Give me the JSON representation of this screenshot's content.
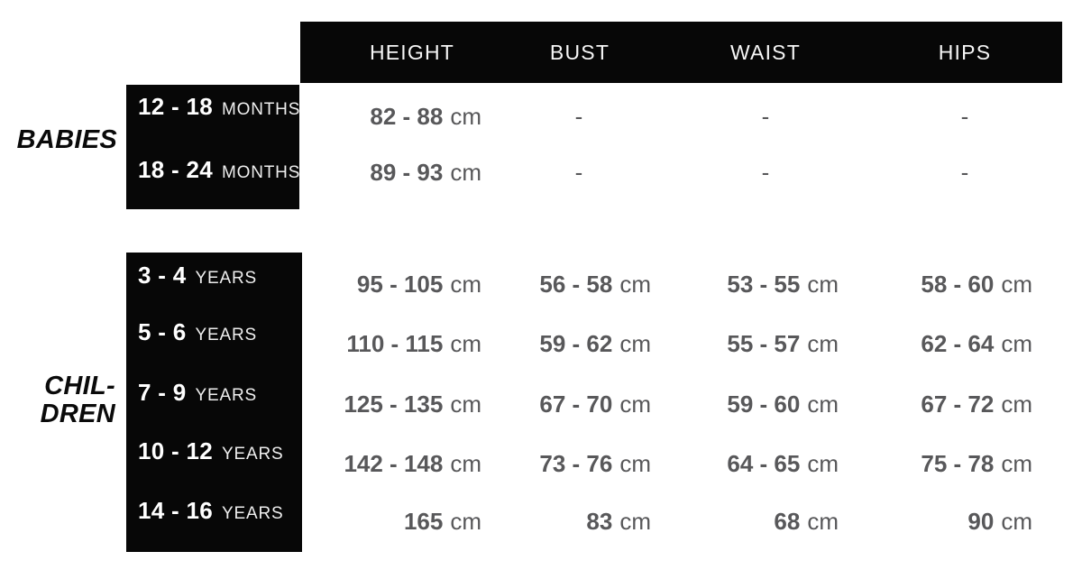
{
  "colors": {
    "bar_background": "#070707",
    "header_text": "#f7f7f7",
    "value_text": "#58585a",
    "side_label_text": "#0a0a0a"
  },
  "table": {
    "columns": [
      {
        "label": "HEIGHT"
      },
      {
        "label": "BUST"
      },
      {
        "label": "WAIST"
      },
      {
        "label": "HIPS"
      }
    ],
    "groups": [
      {
        "title_lines": [
          "BABIES"
        ],
        "rows": [
          {
            "range": "12 - 18",
            "unit": "MONTHS",
            "cells": [
              {
                "range": "82 - 88",
                "unit": "cm"
              },
              {
                "dash": "-"
              },
              {
                "dash": "-"
              },
              {
                "dash": "-"
              }
            ]
          },
          {
            "range": "18 - 24",
            "unit": "MONTHS",
            "cells": [
              {
                "range": "89 - 93",
                "unit": "cm"
              },
              {
                "dash": "-"
              },
              {
                "dash": "-"
              },
              {
                "dash": "-"
              }
            ]
          }
        ]
      },
      {
        "title_lines": [
          "CHIL-",
          "DREN"
        ],
        "rows": [
          {
            "range": "3 - 4",
            "unit": "YEARS",
            "cells": [
              {
                "range": "95 - 105",
                "unit": "cm"
              },
              {
                "range": "56 - 58",
                "unit": "cm"
              },
              {
                "range": "53 - 55",
                "unit": "cm"
              },
              {
                "range": "58 - 60",
                "unit": "cm"
              }
            ]
          },
          {
            "range": "5 - 6",
            "unit": "YEARS",
            "cells": [
              {
                "range": "110 - 115",
                "unit": "cm"
              },
              {
                "range": "59 - 62",
                "unit": "cm"
              },
              {
                "range": "55 - 57",
                "unit": "cm"
              },
              {
                "range": "62 - 64",
                "unit": "cm"
              }
            ]
          },
          {
            "range": "7 - 9",
            "unit": "YEARS",
            "cells": [
              {
                "range": "125 - 135",
                "unit": "cm"
              },
              {
                "range": "67 - 70",
                "unit": "cm"
              },
              {
                "range": "59 - 60",
                "unit": "cm"
              },
              {
                "range": "67 - 72",
                "unit": "cm"
              }
            ]
          },
          {
            "range": "10 - 12",
            "unit": "YEARS",
            "cells": [
              {
                "range": "142 - 148",
                "unit": "cm"
              },
              {
                "range": "73 - 76",
                "unit": "cm"
              },
              {
                "range": "64 - 65",
                "unit": "cm"
              },
              {
                "range": "75 - 78",
                "unit": "cm"
              }
            ]
          },
          {
            "range": "14 - 16",
            "unit": "YEARS",
            "cells": [
              {
                "range": "165",
                "unit": "cm"
              },
              {
                "range": "83",
                "unit": "cm"
              },
              {
                "range": "68",
                "unit": "cm"
              },
              {
                "range": "90",
                "unit": "cm"
              }
            ]
          }
        ]
      }
    ]
  },
  "chart_data": {
    "type": "table",
    "columns": [
      "",
      "HEIGHT",
      "BUST",
      "WAIST",
      "HIPS"
    ],
    "row_groups": [
      {
        "group": "BABIES",
        "rows": [
          {
            "label": "12 - 18 MONTHS",
            "HEIGHT": "82 - 88 cm",
            "BUST": "-",
            "WAIST": "-",
            "HIPS": "-"
          },
          {
            "label": "18 - 24 MONTHS",
            "HEIGHT": "89 - 93 cm",
            "BUST": "-",
            "WAIST": "-",
            "HIPS": "-"
          }
        ]
      },
      {
        "group": "CHILDREN",
        "rows": [
          {
            "label": "3 - 4 YEARS",
            "HEIGHT": "95 - 105 cm",
            "BUST": "56 - 58 cm",
            "WAIST": "53 - 55 cm",
            "HIPS": "58 - 60 cm"
          },
          {
            "label": "5 - 6 YEARS",
            "HEIGHT": "110 - 115 cm",
            "BUST": "59 - 62 cm",
            "WAIST": "55 - 57 cm",
            "HIPS": "62 - 64 cm"
          },
          {
            "label": "7 - 9 YEARS",
            "HEIGHT": "125 - 135 cm",
            "BUST": "67 - 70 cm",
            "WAIST": "59 - 60 cm",
            "HIPS": "67 - 72 cm"
          },
          {
            "label": "10 - 12 YEARS",
            "HEIGHT": "142 - 148 cm",
            "BUST": "73 - 76 cm",
            "WAIST": "64 - 65 cm",
            "HIPS": "75 - 78 cm"
          },
          {
            "label": "14 - 16 YEARS",
            "HEIGHT": "165 cm",
            "BUST": "83 cm",
            "WAIST": "68 cm",
            "HIPS": "90 cm"
          }
        ]
      }
    ]
  }
}
